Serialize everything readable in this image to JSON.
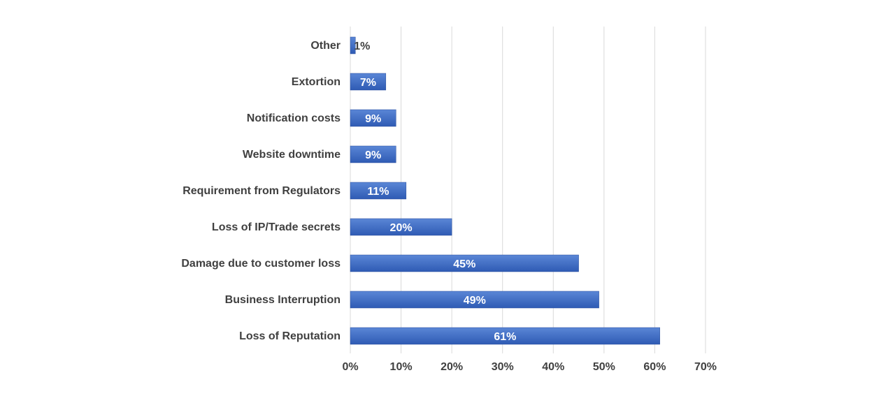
{
  "chart_data": {
    "type": "bar",
    "orientation": "horizontal",
    "title": "",
    "xlabel": "",
    "ylabel": "",
    "xlim": [
      0,
      70
    ],
    "x_ticks": [
      0,
      10,
      20,
      30,
      40,
      50,
      60,
      70
    ],
    "x_tick_labels": [
      "0%",
      "10%",
      "20%",
      "30%",
      "40%",
      "50%",
      "60%",
      "70%"
    ],
    "grid": "vertical",
    "categories": [
      "Other",
      "Extortion",
      "Notification costs",
      "Website downtime",
      "Requirement from Regulators",
      "Loss of IP/Trade secrets",
      "Damage due to customer loss",
      "Business Interruption",
      "Loss of Reputation"
    ],
    "values": [
      1,
      7,
      9,
      9,
      11,
      20,
      45,
      49,
      61
    ],
    "data_labels": [
      "1%",
      "7%",
      "9%",
      "9%",
      "11%",
      "20%",
      "45%",
      "49%",
      "61%"
    ],
    "colors": {
      "bar_top": "#5a86d6",
      "bar_bottom": "#2f5bb4",
      "bar_edge": "#2a4f9c",
      "grid": "#d9d9d9",
      "label_inside": "#ffffff",
      "label_outside": "#404040"
    }
  }
}
